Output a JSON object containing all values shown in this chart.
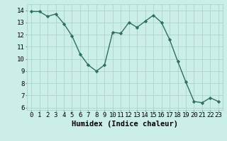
{
  "x": [
    0,
    1,
    2,
    3,
    4,
    5,
    6,
    7,
    8,
    9,
    10,
    11,
    12,
    13,
    14,
    15,
    16,
    17,
    18,
    19,
    20,
    21,
    22,
    23
  ],
  "y": [
    13.9,
    13.9,
    13.5,
    13.7,
    12.9,
    11.9,
    10.4,
    9.5,
    9.0,
    9.5,
    12.2,
    12.1,
    13.0,
    12.6,
    13.1,
    13.6,
    13.0,
    11.6,
    9.8,
    8.1,
    6.5,
    6.4,
    6.8,
    6.5
  ],
  "line_color": "#2e7060",
  "marker": "D",
  "marker_size": 2.2,
  "bg_color": "#cceee8",
  "grid_color": "#aad4cc",
  "xlabel": "Humidex (Indice chaleur)",
  "ylim": [
    5.8,
    14.5
  ],
  "xlim": [
    -0.5,
    23.5
  ],
  "yticks": [
    6,
    7,
    8,
    9,
    10,
    11,
    12,
    13,
    14
  ],
  "xticks": [
    0,
    1,
    2,
    3,
    4,
    5,
    6,
    7,
    8,
    9,
    10,
    11,
    12,
    13,
    14,
    15,
    16,
    17,
    18,
    19,
    20,
    21,
    22,
    23
  ],
  "tick_label_fontsize": 6.5,
  "xlabel_fontsize": 7.5,
  "line_width": 1.0
}
